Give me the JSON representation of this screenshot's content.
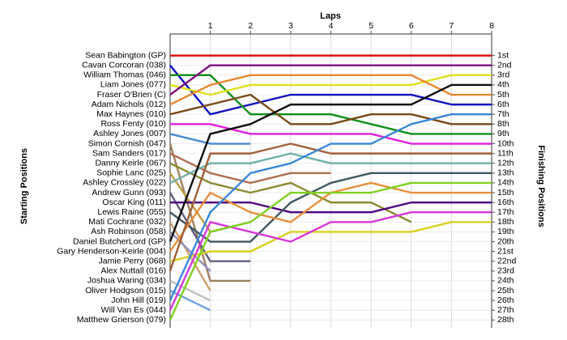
{
  "chart_data": {
    "type": "line",
    "title": "Laps",
    "y_label_left": "Starting Positions",
    "y_label_right": "Finishing Positions",
    "x": [
      0,
      1,
      2,
      3,
      4,
      5,
      6,
      7,
      8
    ],
    "xlim": [
      0,
      8
    ],
    "xticks": [
      1,
      2,
      3,
      4,
      5,
      6,
      7,
      8
    ],
    "ylim": [
      28.8,
      -1.2
    ],
    "yticks": [
      {
        "value": 1,
        "label": "1st"
      },
      {
        "value": 2,
        "label": "2nd"
      },
      {
        "value": 3,
        "label": "3rd"
      },
      {
        "value": 4,
        "label": "4th"
      },
      {
        "value": 5,
        "label": "5th"
      },
      {
        "value": 6,
        "label": "6th"
      },
      {
        "value": 7,
        "label": "7th"
      },
      {
        "value": 8,
        "label": "8th"
      },
      {
        "value": 9,
        "label": "9th"
      },
      {
        "value": 10,
        "label": "10th"
      },
      {
        "value": 11,
        "label": "11th"
      },
      {
        "value": 12,
        "label": "12th"
      },
      {
        "value": 13,
        "label": "13th"
      },
      {
        "value": 14,
        "label": "14th"
      },
      {
        "value": 15,
        "label": "15th"
      },
      {
        "value": 16,
        "label": "16th"
      },
      {
        "value": 17,
        "label": "17th"
      },
      {
        "value": 18,
        "label": "18th"
      },
      {
        "value": 19,
        "label": "19th"
      },
      {
        "value": 20,
        "label": "20th"
      },
      {
        "value": 21,
        "label": "21st"
      },
      {
        "value": 22,
        "label": "22nd"
      },
      {
        "value": 23,
        "label": "23rd"
      },
      {
        "value": 24,
        "label": "24th"
      },
      {
        "value": 25,
        "label": "25th"
      },
      {
        "value": 26,
        "label": "26th"
      },
      {
        "value": 27,
        "label": "27th"
      },
      {
        "value": 28,
        "label": "28th"
      }
    ],
    "grid": true,
    "series": [
      {
        "name": "Sean Babington (GP)",
        "color": "#e01010",
        "values": [
          1,
          1,
          1,
          1,
          1,
          1,
          1,
          1,
          1
        ]
      },
      {
        "name": "Cavan Corcoran (038)",
        "color": "#1010c0",
        "values": [
          2,
          7,
          6,
          5,
          5,
          5,
          5,
          6,
          6
        ]
      },
      {
        "name": "William Thomas (046)",
        "color": "#10901a",
        "values": [
          3,
          3,
          7,
          7,
          7,
          8,
          9,
          9,
          9
        ]
      },
      {
        "name": "Liam Jones (077)",
        "color": "#e0e020",
        "values": [
          4,
          5,
          4,
          4,
          4,
          4,
          4,
          3,
          3
        ]
      },
      {
        "name": "Fraser O'Brien (C)",
        "color": "#801080",
        "values": [
          5,
          2,
          2,
          2,
          2,
          2,
          2,
          2,
          2
        ]
      },
      {
        "name": "Adam Nichols (012)",
        "color": "#e88830",
        "values": [
          6,
          4,
          3,
          3,
          3,
          3,
          3,
          5,
          5
        ]
      },
      {
        "name": "Max Haynes (010)",
        "color": "#7a4a1a",
        "values": [
          7,
          6,
          5,
          8,
          8,
          7,
          7,
          8,
          8
        ]
      },
      {
        "name": "Ross Fenty (010)",
        "color": "#e020e0",
        "values": [
          8,
          8,
          9,
          9,
          9,
          9,
          10,
          10,
          10
        ]
      },
      {
        "name": "Ashley Jones (007)",
        "color": "#4a8ad0",
        "values": [
          9,
          10,
          10,
          null,
          null,
          null,
          null,
          null,
          null
        ]
      },
      {
        "name": "Simon Cornish (047)",
        "color": "#a08060",
        "values": [
          10,
          24,
          24,
          null,
          null,
          null,
          null,
          null,
          null
        ]
      },
      {
        "name": "Sam Sanders (017)",
        "color": "#b07050",
        "values": [
          11,
          13,
          14,
          13,
          13,
          null,
          null,
          null,
          null
        ]
      },
      {
        "name": "Danny Keirle (067)",
        "color": "#8a8a30",
        "values": [
          12,
          14,
          15,
          14,
          16,
          16,
          18,
          null,
          null
        ]
      },
      {
        "name": "Sophie Lanc (025)",
        "color": "#c0a040",
        "values": [
          13,
          19,
          18,
          null,
          null,
          null,
          null,
          null,
          null
        ]
      },
      {
        "name": "Ashley Crossley (022)",
        "color": "#70b0a8",
        "values": [
          14,
          12,
          12,
          11,
          12,
          12,
          12,
          12,
          12
        ]
      },
      {
        "name": "Andrew Gunn (093)",
        "color": "#606080",
        "values": [
          15,
          22,
          22,
          null,
          null,
          null,
          null,
          null,
          null
        ]
      },
      {
        "name": "Oscar King (011)",
        "color": "#500880",
        "values": [
          16,
          16,
          16,
          17,
          17,
          17,
          16,
          16,
          16
        ]
      },
      {
        "name": "Lewis Raine (055)",
        "color": "#405860",
        "values": [
          17,
          20,
          20,
          16,
          14,
          13,
          13,
          13,
          13
        ]
      },
      {
        "name": "Mati Cochrane (032)",
        "color": "#d0a070",
        "values": [
          18,
          25,
          null,
          null,
          null,
          null,
          null,
          null,
          null
        ]
      },
      {
        "name": "Ash Robinson (058)",
        "color": "#9090c0",
        "values": [
          19,
          23,
          null,
          null,
          null,
          null,
          null,
          null,
          null
        ]
      },
      {
        "name": "Daniel ButcherLord (GP)",
        "color": "#101010",
        "values": [
          20,
          9,
          8,
          6,
          6,
          6,
          6,
          4,
          4
        ]
      },
      {
        "name": "Gary Henderson-Keirle (004)",
        "color": "#e8903a",
        "values": [
          21,
          15,
          17,
          18,
          15,
          14,
          15,
          15,
          15
        ]
      },
      {
        "name": "Jamie Perry (068)",
        "color": "#d8d020",
        "values": [
          22,
          21,
          21,
          19,
          19,
          19,
          19,
          18,
          18
        ]
      },
      {
        "name": "Alex Nuttall (016)",
        "color": "#a0603a",
        "values": [
          23,
          11,
          11,
          10,
          11,
          11,
          11,
          11,
          11
        ]
      },
      {
        "name": "Joshua Waring (034)",
        "color": "#c0c0c0",
        "values": [
          24,
          26,
          null,
          null,
          null,
          null,
          null,
          null,
          null
        ]
      },
      {
        "name": "Oliver Hodgson (015)",
        "color": "#70a0e0",
        "values": [
          25,
          27,
          null,
          null,
          null,
          null,
          null,
          null,
          null
        ]
      },
      {
        "name": "John Hill (019)",
        "color": "#3a88d8",
        "values": [
          26,
          17,
          13,
          12,
          10,
          10,
          8,
          7,
          7
        ]
      },
      {
        "name": "Will Van Es (044)",
        "color": "#d838d8",
        "values": [
          27,
          18,
          19,
          20,
          18,
          18,
          17,
          17,
          17
        ]
      },
      {
        "name": "Matthew Grierson (079)",
        "color": "#80d020",
        "values": [
          28,
          19,
          18,
          15,
          15,
          15,
          14,
          14,
          14
        ]
      }
    ]
  }
}
